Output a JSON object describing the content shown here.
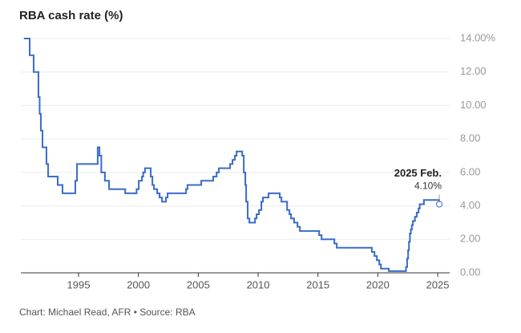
{
  "chart_data": {
    "type": "step-line",
    "title": "RBA cash rate (%)",
    "footer": "Chart: Michael Read, AFR • Source: RBA",
    "annotation": {
      "title": "2025 Feb.",
      "text": "4.10%"
    },
    "xlim": [
      1990.18,
      2026.0
    ],
    "xticks": [
      1995,
      2000,
      2005,
      2010,
      2015,
      2020,
      2025
    ],
    "ylim": [
      0,
      14
    ],
    "yticks": [
      {
        "value": 0,
        "label": "0.00"
      },
      {
        "value": 2,
        "label": "2.00"
      },
      {
        "value": 4,
        "label": "4.00"
      },
      {
        "value": 6,
        "label": "6.00"
      },
      {
        "value": 8,
        "label": "8.00"
      },
      {
        "value": 10,
        "label": "10.00"
      },
      {
        "value": 12,
        "label": "12.00"
      },
      {
        "value": 14,
        "label": "14.00%"
      }
    ],
    "grid": true,
    "series": [
      {
        "name": "RBA cash rate",
        "color": "#3a6cc8",
        "x": [
          1990.5,
          1990.92,
          1991.25,
          1991.65,
          1991.75,
          1991.85,
          1991.99,
          1992.32,
          1992.46,
          1993.26,
          1993.66,
          1994.73,
          1994.87,
          1996.6,
          1996.75,
          1996.9,
          1997.2,
          1997.55,
          1998.9,
          1999.85,
          2000.03,
          2000.3,
          2000.4,
          2000.55,
          2001.03,
          2001.17,
          2001.3,
          2001.57,
          2001.77,
          2001.97,
          2002.3,
          2002.44,
          2003.98,
          2004.1,
          2005.25,
          2006.25,
          2006.53,
          2006.72,
          2007.66,
          2007.86,
          2008.06,
          2008.2,
          2008.67,
          2008.8,
          2008.93,
          2009.0,
          2009.13,
          2009.27,
          2009.74,
          2009.87,
          2010.07,
          2010.27,
          2010.4,
          2010.87,
          2011.81,
          2011.95,
          2012.42,
          2012.62,
          2012.75,
          2013.0,
          2013.29,
          2013.49,
          2015.1,
          2015.3,
          2016.37,
          2016.57,
          2019.5,
          2019.72,
          2019.92,
          2020.12,
          2020.26,
          2020.92,
          2022.35,
          2022.45,
          2022.53,
          2022.6,
          2022.68,
          2022.76,
          2022.84,
          2022.93,
          2023.1,
          2023.25,
          2023.4,
          2023.5,
          2023.85,
          2025.13
        ],
        "values": [
          14,
          13,
          12,
          10.5,
          9.5,
          8.5,
          7.5,
          6.5,
          5.75,
          5.25,
          4.75,
          5.5,
          6.5,
          7.5,
          7.0,
          6.0,
          5.5,
          5.0,
          4.75,
          5.0,
          5.5,
          5.75,
          6.0,
          6.25,
          5.75,
          5.25,
          5.0,
          4.75,
          4.5,
          4.25,
          4.5,
          4.75,
          5.0,
          5.25,
          5.5,
          5.75,
          6.0,
          6.25,
          6.5,
          6.75,
          7.0,
          7.25,
          7.0,
          6.0,
          5.25,
          4.25,
          3.25,
          3.0,
          3.25,
          3.5,
          3.75,
          4.25,
          4.5,
          4.75,
          4.5,
          4.25,
          3.75,
          3.5,
          3.25,
          3.0,
          2.75,
          2.5,
          2.25,
          2.0,
          1.75,
          1.5,
          1.25,
          1.0,
          0.75,
          0.5,
          0.25,
          0.1,
          0.35,
          0.85,
          1.35,
          1.85,
          2.35,
          2.6,
          2.85,
          3.1,
          3.35,
          3.6,
          3.85,
          4.1,
          4.35,
          4.1
        ]
      }
    ]
  }
}
